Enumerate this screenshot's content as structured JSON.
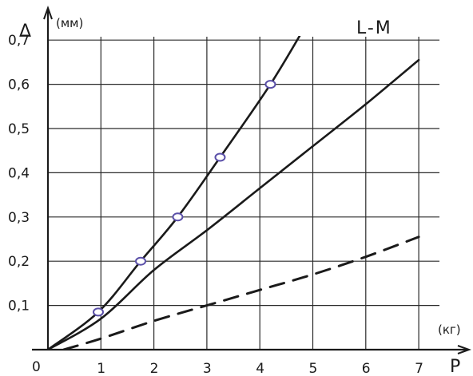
{
  "chart_data": {
    "type": "line",
    "title": "L-M",
    "xlabel": "P",
    "ylabel": "Δ",
    "x_unit": "(кг)",
    "y_unit": "(мм)",
    "origin_label": "0",
    "xlim": [
      0,
      7
    ],
    "ylim": [
      0,
      0.7
    ],
    "grid": true,
    "x_ticks": [
      "1",
      "2",
      "3",
      "4",
      "5",
      "6",
      "7"
    ],
    "y_ticks": [
      "0,1",
      "0,2",
      "0,3",
      "0,4",
      "0,5",
      "0,6",
      "0,7"
    ],
    "series": [
      {
        "style": "solid",
        "markers": true,
        "points": [
          [
            0,
            0
          ],
          [
            0.95,
            0.085
          ],
          [
            1.75,
            0.2
          ],
          [
            2.45,
            0.3
          ],
          [
            3.25,
            0.435
          ],
          [
            4.2,
            0.6
          ],
          [
            4.9,
            0.74
          ]
        ],
        "marked_points": [
          [
            0.95,
            0.085
          ],
          [
            1.75,
            0.2
          ],
          [
            2.45,
            0.3
          ],
          [
            3.25,
            0.435
          ],
          [
            4.2,
            0.6
          ]
        ]
      },
      {
        "style": "solid",
        "markers": false,
        "points": [
          [
            0,
            0
          ],
          [
            1,
            0.07
          ],
          [
            2,
            0.18
          ],
          [
            3,
            0.27
          ],
          [
            4,
            0.365
          ],
          [
            5,
            0.46
          ],
          [
            6,
            0.555
          ],
          [
            7,
            0.655
          ]
        ]
      },
      {
        "style": "dashed",
        "markers": false,
        "points": [
          [
            0.3,
            0.0
          ],
          [
            1,
            0.025
          ],
          [
            2,
            0.065
          ],
          [
            3,
            0.1
          ],
          [
            4,
            0.135
          ],
          [
            5,
            0.17
          ],
          [
            6,
            0.21
          ],
          [
            7,
            0.255
          ]
        ]
      }
    ],
    "colors": {
      "ink": "#1a1a1a",
      "marker": "#5a4fa8",
      "grid": "#2a2a2a"
    }
  }
}
